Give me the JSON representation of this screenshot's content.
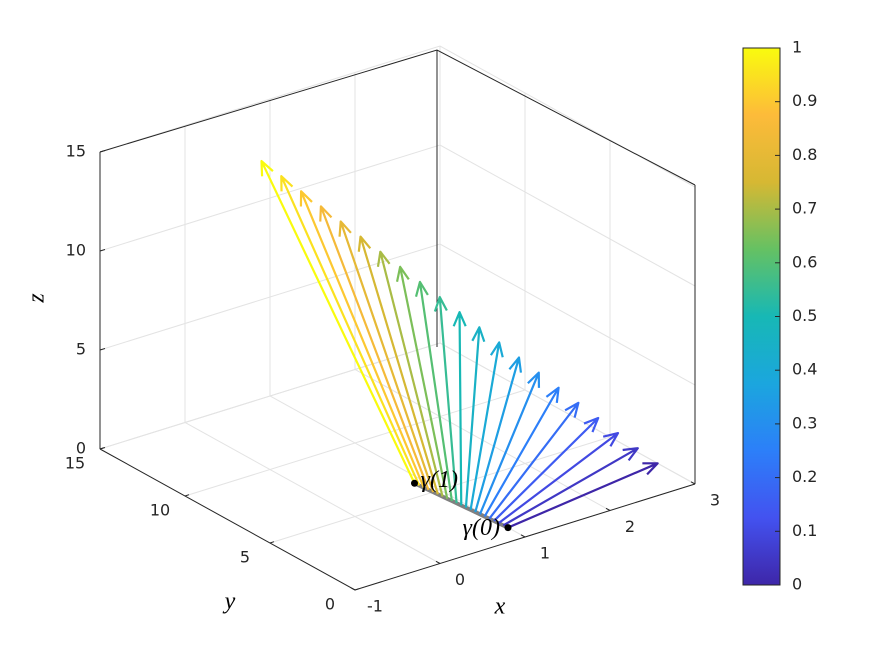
{
  "chart_data": {
    "type": "quiver3",
    "xlabel": "x",
    "ylabel": "y",
    "zlabel": "z",
    "xlim": [
      -1,
      3
    ],
    "ylim": [
      0,
      15
    ],
    "zlim": [
      0,
      15
    ],
    "xticks": [
      -1,
      0,
      1,
      2,
      3
    ],
    "yticks": [
      0,
      5,
      10,
      15
    ],
    "zticks": [
      0,
      5,
      10,
      15
    ],
    "grid": true,
    "x": [
      1,
      0.995,
      0.99,
      0.985,
      0.98,
      0.975,
      0.97,
      0.965,
      0.96,
      0.955,
      0.95,
      0.945,
      0.94,
      0.935,
      0.93,
      0.925,
      0.92,
      0.915,
      0.91,
      0.905,
      0.9
    ],
    "y": [
      1,
      1.25,
      1.5,
      1.75,
      2,
      2.25,
      2.5,
      2.75,
      3,
      3.25,
      3.5,
      3.75,
      4,
      4.25,
      4.5,
      4.75,
      5,
      5.25,
      5.5,
      5.75,
      6
    ],
    "z": [
      0,
      0,
      0,
      0,
      0,
      0,
      0,
      0,
      0,
      0,
      0,
      0,
      0,
      0,
      0,
      0,
      0,
      0,
      0,
      0,
      0
    ],
    "u": [
      2,
      1.9,
      1.8,
      1.7,
      1.6,
      1.5,
      1.4,
      1.3,
      1.2,
      1.1,
      1,
      0.9,
      0.8,
      0.7,
      0.6,
      0.5,
      0.4,
      0.3,
      0.2,
      0.1,
      0
    ],
    "v": [
      1.2,
      1.59,
      1.98,
      2.37,
      2.76,
      3.15,
      3.54,
      3.93,
      4.32,
      4.71,
      5.1,
      5.49,
      5.88,
      6.27,
      6.66,
      7.05,
      7.44,
      7.83,
      8.22,
      8.61,
      9
    ],
    "w": [
      0,
      0.6,
      1.2,
      1.8,
      2.4,
      3,
      3.6,
      4.2,
      4.8,
      5.4,
      6,
      6.6,
      7.2,
      7.8,
      8.4,
      9,
      9.6,
      10.2,
      10.8,
      11.4,
      12
    ],
    "c": [
      0,
      0.05,
      0.1,
      0.15,
      0.2,
      0.25,
      0.3,
      0.35,
      0.4,
      0.45,
      0.5,
      0.55,
      0.6,
      0.65,
      0.7,
      0.75,
      0.8,
      0.85,
      0.9,
      0.95,
      1
    ],
    "colormap": [
      "#3e26a8",
      "#4352f0",
      "#2c7ff9",
      "#1ba6de",
      "#17b8b5",
      "#65c163",
      "#d6b833",
      "#fdbb3a",
      "#f9fb0e"
    ],
    "clim": [
      0,
      1
    ],
    "cticks": [
      0,
      0.1,
      0.2,
      0.3,
      0.4,
      0.5,
      0.6,
      0.7,
      0.8,
      0.9,
      1
    ],
    "curve_color": "#808080",
    "annotations": [
      {
        "text": "γ(0)",
        "x": 1,
        "y": 1,
        "z": 0
      },
      {
        "text": "γ(1)",
        "x": 0.9,
        "y": 6,
        "z": 0
      }
    ]
  }
}
